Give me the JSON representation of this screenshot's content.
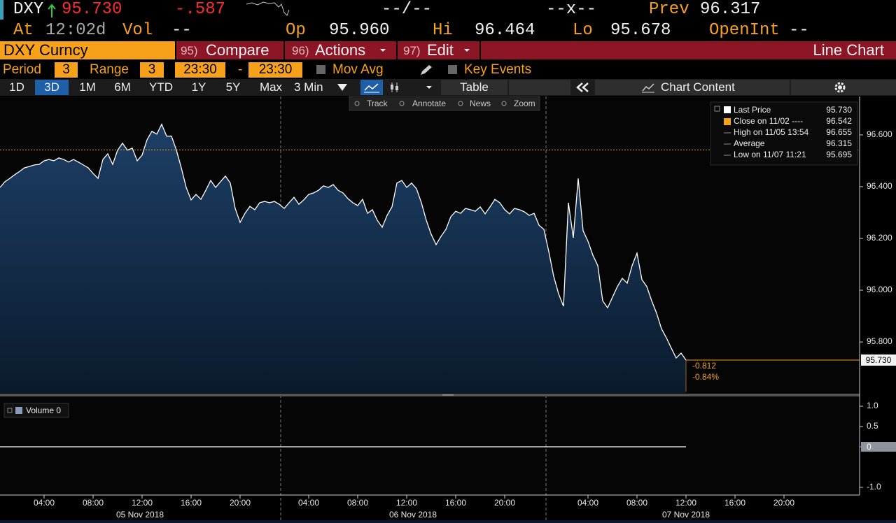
{
  "header": {
    "ticker": "DXY",
    "last": "95.730",
    "change": "-.587",
    "bid_ask": "--/--",
    "size": "--x--",
    "prev_label": "Prev",
    "prev": "96.317",
    "at_label": "At",
    "time": "12:02d",
    "vol_label": "Vol",
    "vol": "--",
    "open_label": "Op",
    "open": "95.960",
    "high_label": "Hi",
    "high": "96.464",
    "low_label": "Lo",
    "low": "95.678",
    "oi_label": "OpenInt",
    "oi": "--"
  },
  "toolbar": {
    "security": "DXY Curncy",
    "menus": [
      {
        "key": "95)",
        "label": "Compare"
      },
      {
        "key": "96)",
        "label": "Actions"
      },
      {
        "key": "97)",
        "label": "Edit"
      }
    ],
    "view": "Line Chart"
  },
  "settings": {
    "period_label": "Period",
    "period": "3",
    "range_label": "Range",
    "range": "3",
    "from": "23:30",
    "dash": "-",
    "to": "23:30",
    "mov_avg": "Mov Avg",
    "key_events": "Key Events"
  },
  "buttons": {
    "ranges": [
      "1D",
      "3D",
      "1M",
      "6M",
      "YTD",
      "1Y",
      "5Y",
      "Max"
    ],
    "active_index": 1,
    "interval": "3 Min",
    "table": "Table",
    "chart_content": "Chart Content"
  },
  "chart_tools": [
    "Track",
    "Annotate",
    "News",
    "Zoom"
  ],
  "chart_data": [
    {
      "type": "line",
      "categories": [
        null,
        null,
        null,
        null,
        null,
        null,
        null,
        null,
        null,
        "04:00",
        null,
        null,
        null,
        null,
        null,
        null,
        null,
        null,
        null,
        "08:00",
        null,
        null,
        null,
        null,
        null,
        null,
        null,
        null,
        null,
        "12:00",
        null,
        null,
        null,
        null,
        null,
        null,
        null,
        null,
        null,
        "16:00",
        null,
        null,
        null,
        null,
        null,
        null,
        null,
        null,
        null,
        "20:00",
        null,
        null,
        null,
        null,
        null,
        null,
        null,
        null,
        null,
        null,
        null,
        null,
        null,
        "04:00",
        null,
        null,
        null,
        null,
        null,
        null,
        null,
        null,
        null,
        "08:00",
        null,
        null,
        null,
        null,
        null,
        null,
        null,
        null,
        null,
        "12:00",
        null,
        null,
        null,
        null,
        null,
        null,
        null,
        null,
        null,
        "16:00",
        null,
        null,
        null,
        null,
        null,
        null,
        null,
        null,
        null,
        "20:00",
        null,
        null,
        null,
        null,
        null,
        null,
        null,
        null,
        null,
        null,
        null,
        null,
        null,
        null,
        null,
        null,
        "04:00",
        null,
        null,
        null,
        null,
        null,
        null,
        null,
        null,
        null,
        "08:00",
        null,
        null,
        null,
        null,
        null,
        null,
        null,
        null,
        null,
        "12:00",
        null,
        null,
        null,
        null,
        null,
        null,
        null,
        null,
        null,
        "16:00",
        null,
        null,
        null,
        null,
        null,
        null,
        null,
        null,
        null,
        "20:00",
        null,
        null,
        null,
        null,
        null,
        null,
        null,
        null,
        null,
        null,
        null,
        null,
        null,
        null,
        null
      ],
      "x_dates": [
        "05 Nov 2018",
        "06 Nov 2018",
        "07 Nov 2018"
      ],
      "series": [
        {
          "name": "Last Price",
          "color": "#ffffff",
          "last_label": "95.730",
          "values": [
            96.397,
            96.419,
            96.432,
            96.446,
            96.459,
            96.473,
            96.478,
            96.484,
            96.486,
            96.5,
            96.505,
            96.5,
            96.511,
            96.505,
            96.495,
            96.505,
            96.495,
            96.484,
            96.473,
            96.451,
            96.432,
            96.505,
            96.527,
            96.486,
            96.541,
            96.568,
            96.541,
            96.549,
            96.5,
            96.522,
            96.581,
            96.614,
            96.603,
            96.641,
            96.595,
            96.595,
            96.541,
            96.473,
            96.397,
            96.349,
            96.37,
            96.351,
            96.386,
            96.424,
            96.397,
            96.419,
            96.441,
            96.414,
            96.316,
            96.262,
            96.297,
            96.324,
            96.311,
            96.338,
            96.343,
            96.338,
            96.343,
            96.332,
            96.316,
            96.338,
            96.359,
            96.332,
            96.349,
            96.37,
            96.376,
            96.386,
            96.403,
            96.397,
            96.408,
            96.386,
            96.376,
            96.354,
            96.338,
            96.327,
            96.351,
            96.297,
            96.311,
            96.27,
            96.243,
            96.289,
            96.322,
            96.414,
            96.424,
            96.397,
            96.414,
            96.392,
            96.338,
            96.27,
            96.216,
            96.176,
            96.208,
            96.235,
            96.284,
            96.305,
            96.297,
            96.316,
            96.311,
            96.305,
            96.322,
            96.295,
            96.322,
            96.351,
            96.338,
            96.311,
            96.295,
            96.316,
            96.311,
            96.303,
            96.289,
            96.297,
            96.251,
            96.235,
            96.149,
            96.054,
            95.986,
            95.938,
            96.338,
            96.203,
            96.432,
            96.23,
            96.189,
            96.135,
            96.095,
            95.959,
            95.932,
            95.973,
            96.014,
            96.046,
            96.027,
            96.095,
            96.143,
            96.041,
            96.014,
            95.959,
            95.911,
            95.851,
            95.816,
            95.776,
            95.738,
            95.757,
            95.73,
            null,
            null,
            null,
            null,
            null,
            null,
            null,
            null,
            null,
            null,
            null,
            null,
            null,
            null,
            null,
            null,
            null,
            null,
            null,
            null,
            null,
            null,
            null,
            null,
            null,
            null,
            null,
            null,
            null,
            null,
            null,
            null,
            null,
            null,
            null
          ]
        }
      ],
      "stats": [
        {
          "label": "Close on 11/02 ----",
          "value_label": "96.542",
          "color": "#f7a11a"
        },
        {
          "label": "High on 11/05 13:54",
          "value_label": "96.655"
        },
        {
          "label": "Average",
          "value_label": "96.315"
        },
        {
          "label": "Low on 11/07 11:21",
          "value_label": "95.695"
        }
      ],
      "close_line": 96.542,
      "close_color": "#f7a11a",
      "change_labels": [
        "-0.812",
        "-0.84%"
      ],
      "ylim": [
        95.603,
        96.743
      ],
      "yticks": [
        {
          "value": 95.8,
          "label": "95.800"
        },
        {
          "value": 96.0,
          "label": "96.000"
        },
        {
          "value": 96.2,
          "label": "96.200"
        },
        {
          "value": 96.4,
          "label": "96.400"
        },
        {
          "value": 96.6,
          "label": "96.600"
        }
      ]
    },
    {
      "type": "line",
      "series": [
        {
          "name": "Volume",
          "color": "#ffffff",
          "value_label": "0",
          "values": [
            0,
            0,
            0,
            0,
            0,
            0,
            0,
            0,
            0,
            0,
            0,
            0,
            0,
            0,
            0,
            0,
            0,
            0,
            0,
            0,
            0,
            0,
            0,
            0,
            0,
            0,
            0,
            0,
            0,
            0,
            0,
            0,
            0,
            0,
            0,
            0,
            0,
            0,
            0,
            0,
            0,
            0,
            0,
            0,
            0,
            0,
            0,
            0,
            0,
            0,
            0,
            0,
            0,
            0,
            0,
            0,
            0,
            0,
            0,
            0,
            0,
            0,
            0,
            0,
            0,
            0,
            0,
            0,
            0,
            0,
            0,
            0,
            0,
            0,
            0,
            0,
            0,
            0,
            0,
            0,
            0,
            0,
            0,
            0,
            0,
            0,
            0,
            0,
            0,
            0,
            0,
            0,
            0,
            0,
            0,
            0,
            0,
            0,
            0,
            0,
            0,
            0,
            0,
            0,
            0,
            0,
            0,
            0,
            0,
            0,
            0,
            0,
            0,
            0,
            0,
            0,
            0,
            0,
            0,
            0,
            0,
            0,
            0,
            0,
            0,
            0,
            0,
            0,
            0,
            0,
            0,
            0,
            0,
            0,
            0,
            0,
            0,
            0,
            0,
            0,
            0,
            null,
            null,
            null,
            null,
            null,
            null,
            null,
            null,
            null,
            null,
            null,
            null,
            null,
            null,
            null,
            null,
            null,
            null,
            null,
            null,
            null,
            null,
            null,
            null,
            null,
            null,
            null,
            null,
            null,
            null,
            null,
            null,
            null,
            null,
            null
          ]
        }
      ],
      "ylim": [
        -1.19,
        1.276
      ],
      "yticks": [
        {
          "value": -1,
          "label": "-1.0"
        },
        0,
        {
          "value": 0.5,
          "label": "0.5"
        },
        {
          "value": 1,
          "label": "1.0"
        }
      ]
    }
  ]
}
